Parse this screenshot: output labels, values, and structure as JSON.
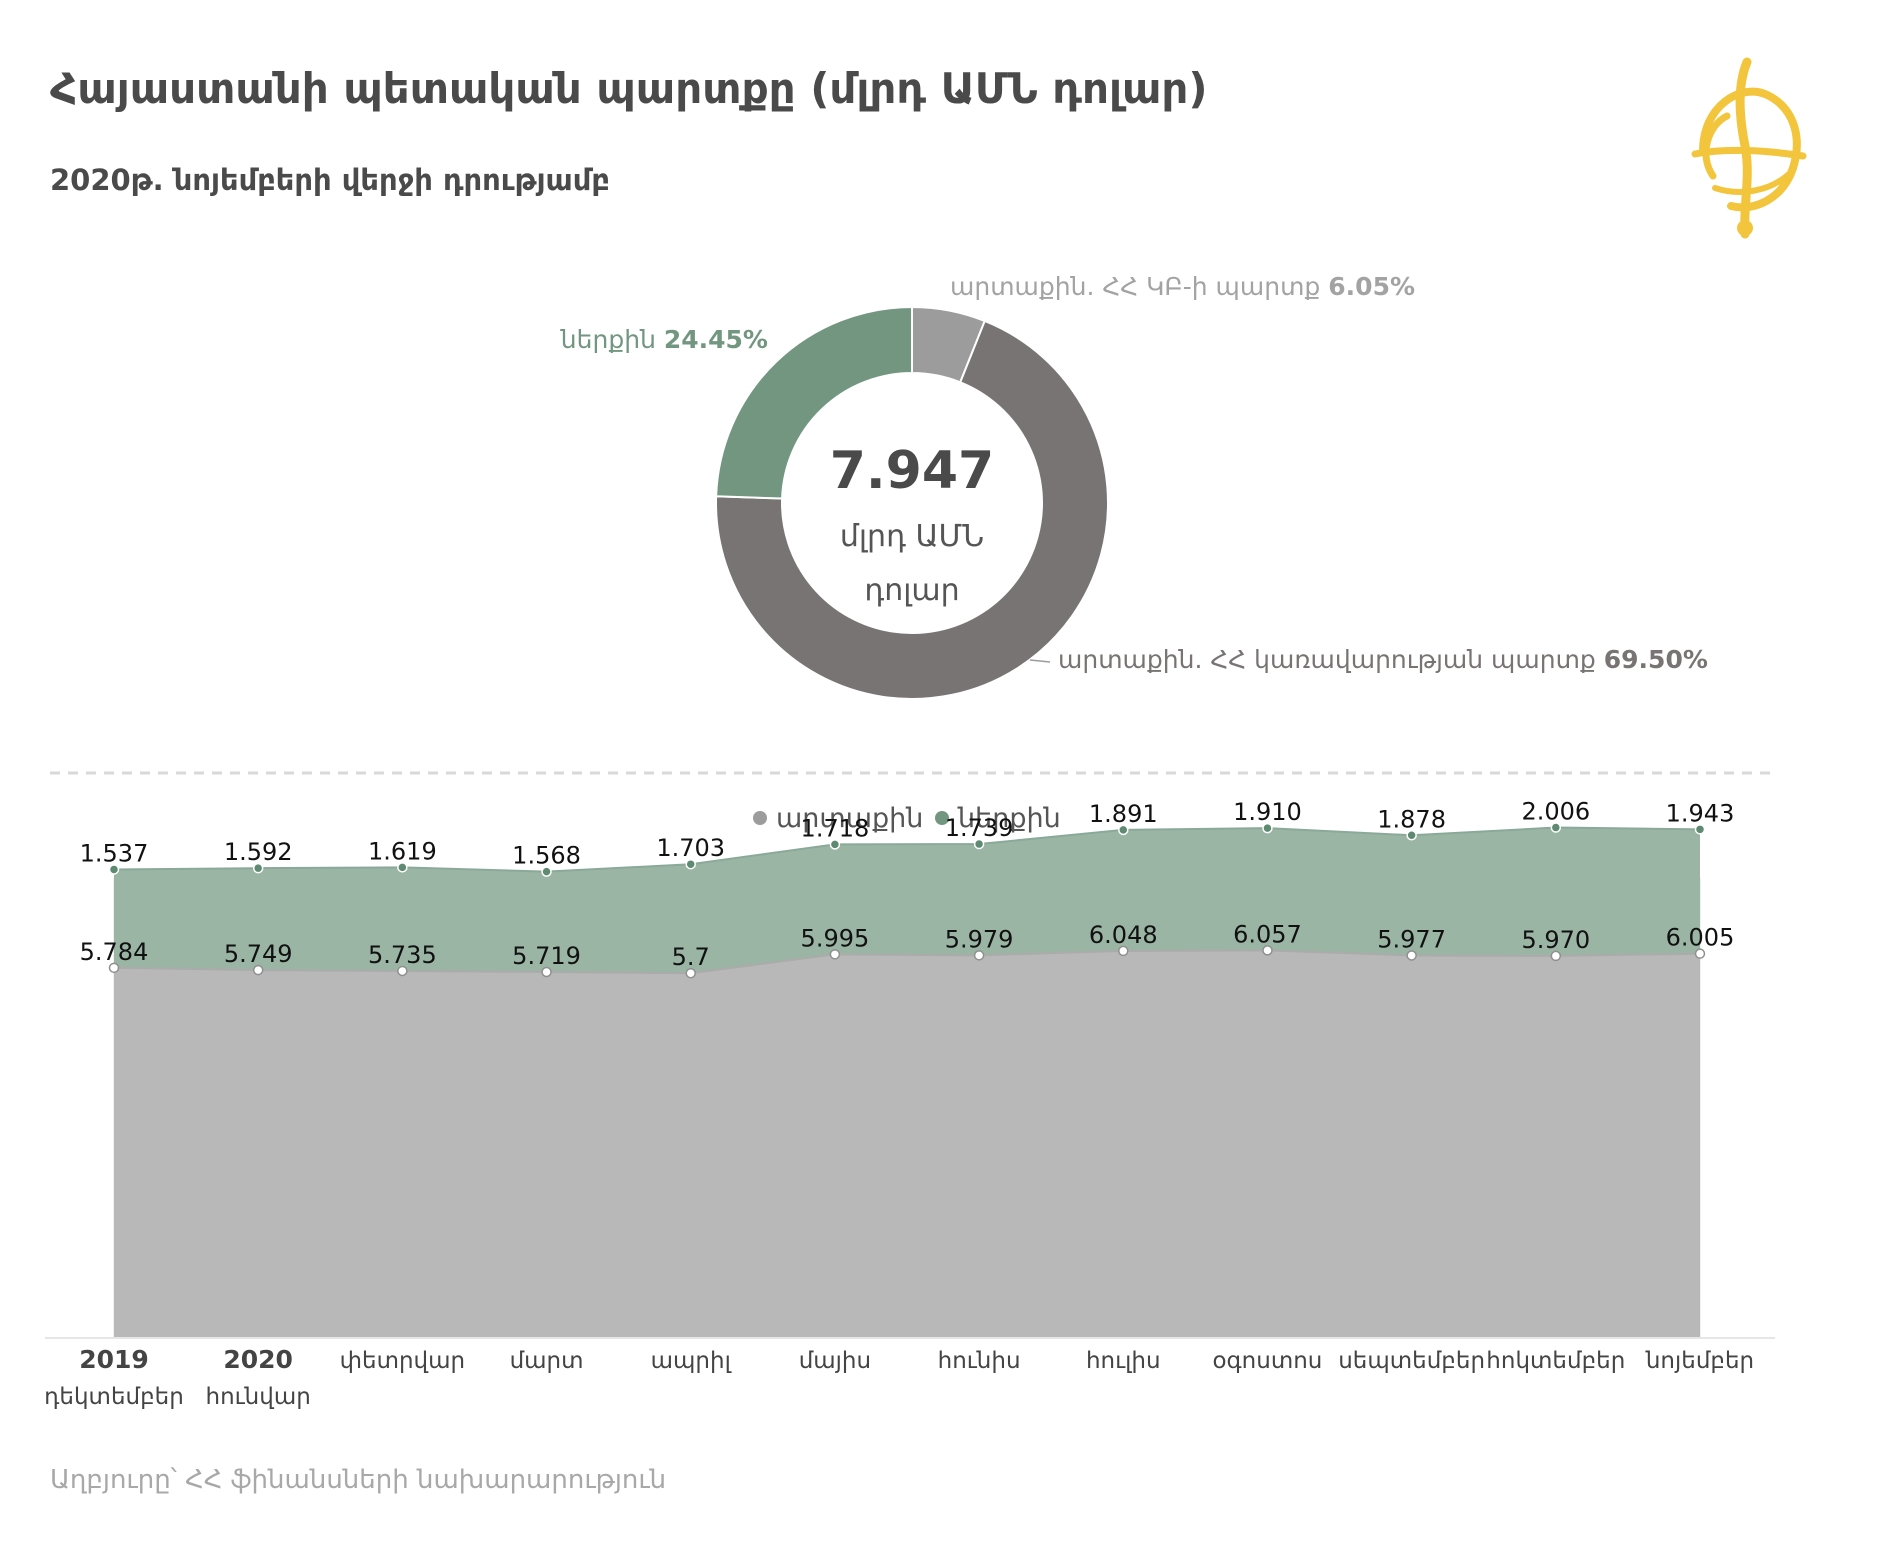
{
  "title": "Հայաստանի պետական պարտքը (մլրդ ԱՄՆ դոլար)",
  "subtitle": "2020թ. նոյեմբերի վերջի դրությամբ",
  "source": "Աղբյուրը՝ ՀՀ ֆինանսների նախարարություն",
  "colors": {
    "external_gov": "#787473",
    "external_cb": "#9c9c9c",
    "domestic": "#72967f",
    "area_external": "#b8b8b8",
    "area_domestic": "#9bb5a5",
    "logo": "#f2c53d"
  },
  "chart_data": [
    {
      "type": "pie",
      "variant": "donut",
      "center_value": "7.947",
      "center_label_line1": "մլրդ ԱՄՆ",
      "center_label_line2": "դոլար",
      "slices": [
        {
          "label": "արտաքին. ՀՀ ԿԲ-ի պարտք",
          "value": 6.05,
          "value_label": "6.05%",
          "color": "#9c9c9c"
        },
        {
          "label": "արտաքին. ՀՀ կառավարության պարտք",
          "value": 69.5,
          "value_label": "69.50%",
          "color": "#787473"
        },
        {
          "label": "ներքին",
          "value": 24.45,
          "value_label": "24.45%",
          "color": "#72967f"
        }
      ]
    },
    {
      "type": "area",
      "stacked": true,
      "legend_position": "top-center",
      "ylim": [
        0,
        8.5
      ],
      "categories": [
        [
          "2019",
          "դեկտեմբեր"
        ],
        [
          "2020",
          "հունվար"
        ],
        [
          "փետրվար"
        ],
        [
          "մարտ"
        ],
        [
          "ապրիլ"
        ],
        [
          "մայիս"
        ],
        [
          "հունիս"
        ],
        [
          "հուլիս"
        ],
        [
          "օգոստոս"
        ],
        [
          "սեպտեմբեր"
        ],
        [
          "հոկտեմբեր"
        ],
        [
          "նոյեմբեր"
        ]
      ],
      "series": [
        {
          "name": "արտաքին",
          "color": "#b8b8b8",
          "legend_color": "#9c9c9c",
          "values": [
            5.784,
            5.749,
            5.735,
            5.719,
            5.7,
            5.995,
            5.979,
            6.048,
            6.057,
            5.977,
            5.97,
            6.005
          ],
          "labels": [
            "5.784",
            "5.749",
            "5.735",
            "5.719",
            "5.7",
            "5.995",
            "5.979",
            "6.048",
            "6.057",
            "5.977",
            "5.970",
            "6.005"
          ]
        },
        {
          "name": "ներքին",
          "color": "#9bb5a5",
          "legend_color": "#72967f",
          "values": [
            1.537,
            1.592,
            1.619,
            1.568,
            1.703,
            1.718,
            1.739,
            1.891,
            1.91,
            1.878,
            2.006,
            1.943
          ],
          "labels": [
            "1.537",
            "1.592",
            "1.619",
            "1.568",
            "1.703",
            "1.718",
            "1.739",
            "1.891",
            "1.910",
            "1.878",
            "2.006",
            "1.943"
          ]
        }
      ]
    }
  ]
}
